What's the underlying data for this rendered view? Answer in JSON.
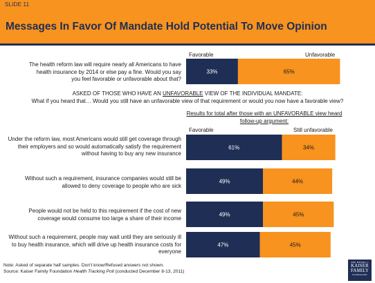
{
  "slide_label": "SLIDE 11",
  "title": "Messages In Favor Of Mandate Hold Potential To Move Opinion",
  "top_headers": {
    "left": "Favorable",
    "right": "Unfavorable"
  },
  "top_question": "The health reform law will require nearly all Americans to have health insurance by 2014 or else pay a fine. Would you say you feel favorable or unfavorable about that?",
  "middle_text": {
    "line1_pre": "ASKED OF THOSE WHO HAVE AN ",
    "line1_underlined": "UNFAVORABLE",
    "line1_post": " VIEW OF THE INDIVIDUAL MANDATE:",
    "line2": "What if you heard that… Would you still have an unfavorable view of that requirement or would you now have a favorable view?"
  },
  "results_heading": "Results for total after those with an UNFAVORABLE view heard follow-up argument:",
  "lower_headers": {
    "left": "Favorable",
    "right": "Still unfavorable"
  },
  "messages": [
    "Under the reform law, most Americans would still get coverage through their employers and so would automatically satisfy the requirement without having to buy any new insurance",
    "Without such a requirement, insurance companies would still be allowed to deny coverage to people who are sick",
    "People would not be held to this requirement if the cost of new coverage would consume too large a share of their income",
    "Without such a requirement, people may wait until they are seriously ill to buy health insurance, which will drive up health insurance costs for everyone"
  ],
  "note_line1": "Note: Asked of separate half samples. Don’t know/Refused answers not shown.",
  "note_line2_pre": "Source: Kaiser Family Foundation ",
  "note_line2_italic": "Health Tracking Poll",
  "note_line2_post": " (conducted December 8-13, 2011)",
  "logo": {
    "line1": "THE HENRY J.",
    "line2a": "KAISER",
    "line2b": "FAMILY",
    "line3": "FOUNDATION"
  },
  "colors": {
    "favorable": "#1f2e54",
    "unfavorable": "#f7931e",
    "accent": "#f7931e",
    "label_on_navy": "#ffffff",
    "label_on_orange": "#1a1a1a"
  },
  "chart_data": {
    "type": "bar",
    "orientation": "horizontal",
    "stacked": true,
    "xlim": [
      0,
      100
    ],
    "series_names": [
      "Favorable",
      "Unfavorable / Still unfavorable"
    ],
    "bars": [
      {
        "group": "top",
        "favorable": 33,
        "unfavorable": 65,
        "favorable_label": "33%",
        "unfavorable_label": "65%"
      },
      {
        "group": "lower",
        "favorable": 61,
        "unfavorable": 34,
        "favorable_label": "61%",
        "unfavorable_label": "34%"
      },
      {
        "group": "lower",
        "favorable": 49,
        "unfavorable": 44,
        "favorable_label": "49%",
        "unfavorable_label": "44%"
      },
      {
        "group": "lower",
        "favorable": 49,
        "unfavorable": 45,
        "favorable_label": "49%",
        "unfavorable_label": "45%"
      },
      {
        "group": "lower",
        "favorable": 47,
        "unfavorable": 45,
        "favorable_label": "47%",
        "unfavorable_label": "45%"
      }
    ]
  }
}
